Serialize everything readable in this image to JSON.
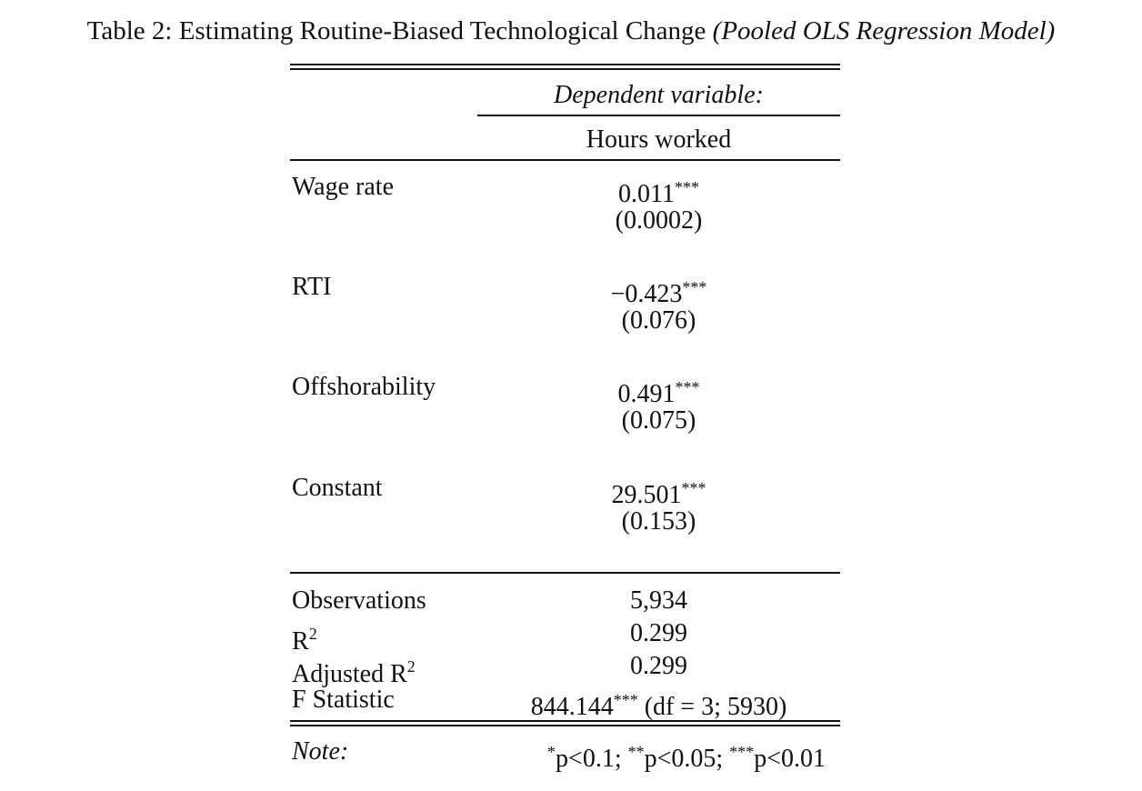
{
  "caption": {
    "prefix": "Table 2: Estimating Routine-Biased Technological Change",
    "suffix": "(Pooled OLS Regression Model)"
  },
  "header": {
    "dep_var_label": "Dependent variable:",
    "dep_var": "Hours worked"
  },
  "rows": [
    {
      "label": "Wage rate",
      "coef": "0.011",
      "stars": "***",
      "se": "(0.0002)"
    },
    {
      "label": "RTI",
      "coef": "−0.423",
      "stars": "***",
      "se": "(0.076)"
    },
    {
      "label": "Offshorability",
      "coef": "0.491",
      "stars": "***",
      "se": "(0.075)"
    },
    {
      "label": "Constant",
      "coef": "29.501",
      "stars": "***",
      "se": "(0.153)"
    }
  ],
  "stats": {
    "observations_label": "Observations",
    "observations": "5,934",
    "r2_label": "R",
    "r2_sup": "2",
    "r2": "0.299",
    "adj_r2_label": "Adjusted R",
    "adj_r2_sup": "2",
    "adj_r2": "0.299",
    "f_label": "F Statistic",
    "f_value": "844.144",
    "f_stars": "***",
    "f_df": " (df = 3; 5930)"
  },
  "note": {
    "label": "Note:",
    "s1": "*",
    "t1": "p<0.1; ",
    "s2": "**",
    "t2": "p<0.05; ",
    "s3": "***",
    "t3": "p<0.01"
  }
}
